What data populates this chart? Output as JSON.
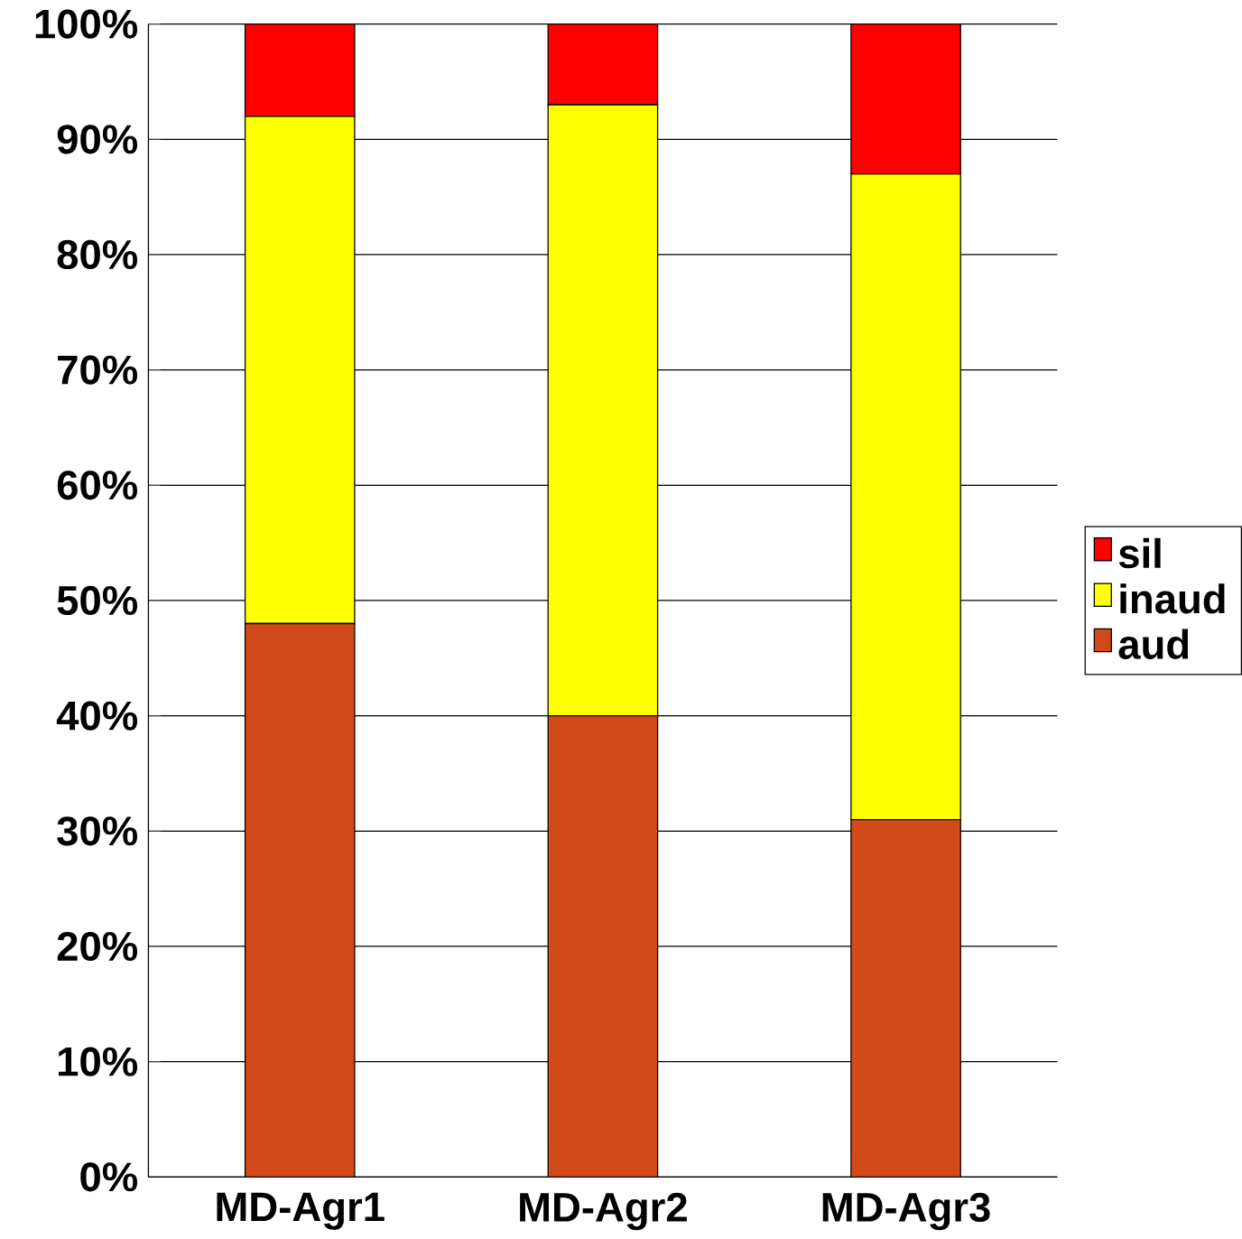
{
  "chart_data": {
    "type": "bar",
    "stacked": true,
    "categories": [
      "MD-Agr1",
      "MD-Agr2",
      "MD-Agr3"
    ],
    "series": [
      {
        "name": "aud",
        "color": "#d24a1a",
        "values": [
          48,
          40,
          31
        ]
      },
      {
        "name": "inaud",
        "color": "#ffff00",
        "values": [
          44,
          53,
          56
        ]
      },
      {
        "name": "sil",
        "color": "#ff0000",
        "values": [
          8,
          7,
          13
        ]
      }
    ],
    "ylim": [
      0,
      100
    ],
    "yticks": [
      {
        "value": 0,
        "label": "0%"
      },
      {
        "value": 10,
        "label": "10%"
      },
      {
        "value": 20,
        "label": "20%"
      },
      {
        "value": 30,
        "label": "30%"
      },
      {
        "value": 40,
        "label": "40%"
      },
      {
        "value": 50,
        "label": "50%"
      },
      {
        "value": 60,
        "label": "60%"
      },
      {
        "value": 70,
        "label": "70%"
      },
      {
        "value": 80,
        "label": "80%"
      },
      {
        "value": 90,
        "label": "90%"
      },
      {
        "value": 100,
        "label": "100%"
      }
    ],
    "grid": "y",
    "legend": "right"
  }
}
